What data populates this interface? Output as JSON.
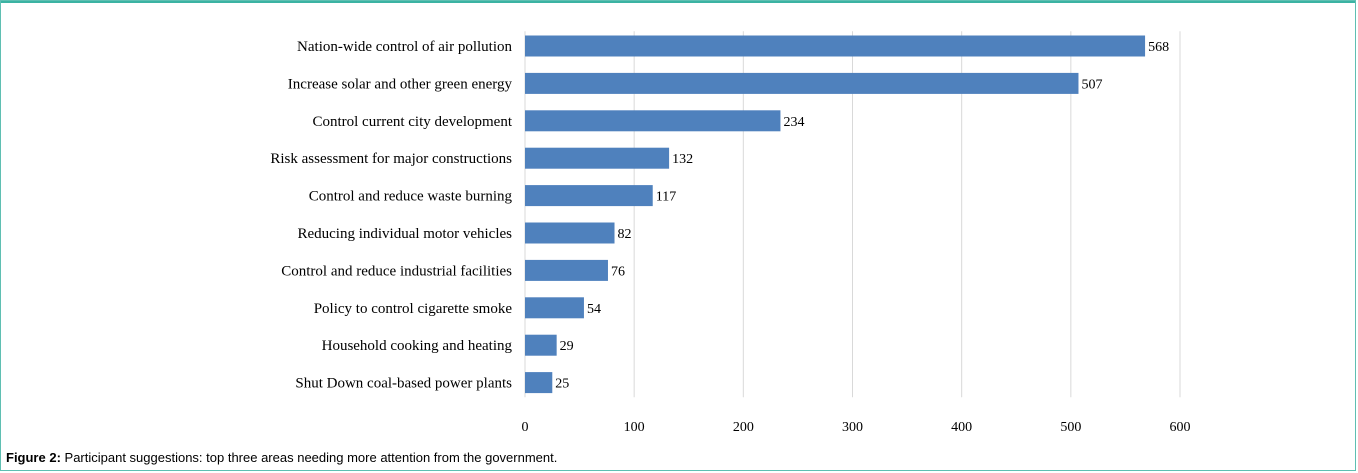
{
  "chart_data": {
    "type": "bar",
    "orientation": "horizontal",
    "categories": [
      "Nation-wide control of air pollution",
      "Increase solar and other green energy",
      "Control current city development",
      "Risk assessment for major constructions",
      "Control and reduce waste burning",
      "Reducing individual motor vehicles",
      "Control and reduce industrial facilities",
      "Policy to control cigarette smoke",
      "Household cooking and heating",
      "Shut Down coal-based power plants"
    ],
    "values": [
      568,
      507,
      234,
      132,
      117,
      82,
      76,
      54,
      29,
      25
    ],
    "x_ticks": [
      "0",
      "100",
      "200",
      "300",
      "400",
      "500",
      "600"
    ],
    "xlim": [
      0,
      600
    ],
    "grid": true,
    "bar_color": "#4f81bd",
    "grid_color": "#d9d9d9"
  },
  "caption": {
    "lead": "Figure 2:",
    "text": " Participant suggestions: top three areas needing more attention from the government."
  }
}
